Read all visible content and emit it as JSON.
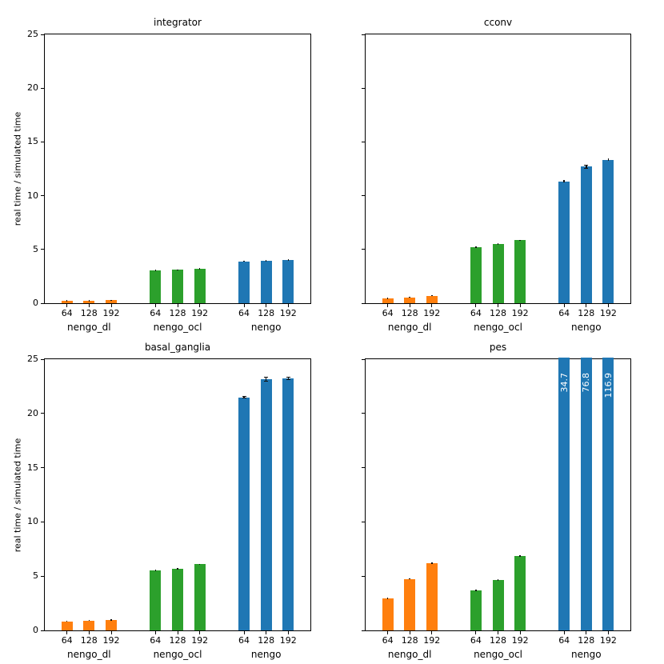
{
  "figure": {
    "background": "#ffffff",
    "text_color": "#000000"
  },
  "chart_data": [
    {
      "type": "bar",
      "title": "integrator",
      "ylabel": "real time / simulated time",
      "ylim": [
        0,
        25
      ],
      "yticks": [
        "0",
        "5",
        "10",
        "15",
        "20",
        "25"
      ],
      "ytick_labels_visible": true,
      "grid": false,
      "legend": "none",
      "categories": [
        "64",
        "128",
        "192"
      ],
      "groups": [
        {
          "label": "nengo_dl",
          "color": "#ff7f0e",
          "bars": [
            {
              "value": 0.22,
              "err": 0.03
            },
            {
              "value": 0.24,
              "err": 0.03
            },
            {
              "value": 0.27,
              "err": 0.03
            }
          ]
        },
        {
          "label": "nengo_ocl",
          "color": "#2ca02c",
          "bars": [
            {
              "value": 3.05,
              "err": 0.05
            },
            {
              "value": 3.1,
              "err": 0.05
            },
            {
              "value": 3.2,
              "err": 0.05
            }
          ]
        },
        {
          "label": "nengo",
          "color": "#1f77b4",
          "bars": [
            {
              "value": 3.9,
              "err": 0.06
            },
            {
              "value": 3.95,
              "err": 0.05
            },
            {
              "value": 4.03,
              "err": 0.06
            }
          ]
        }
      ]
    },
    {
      "type": "bar",
      "title": "cconv",
      "ylabel": "",
      "ylim": [
        0,
        25
      ],
      "yticks": [
        "0",
        "5",
        "10",
        "15",
        "20",
        "25"
      ],
      "ytick_labels_visible": false,
      "grid": false,
      "legend": "none",
      "categories": [
        "64",
        "128",
        "192"
      ],
      "groups": [
        {
          "label": "nengo_dl",
          "color": "#ff7f0e",
          "bars": [
            {
              "value": 0.45,
              "err": 0.03
            },
            {
              "value": 0.55,
              "err": 0.03
            },
            {
              "value": 0.7,
              "err": 0.04
            }
          ]
        },
        {
          "label": "nengo_ocl",
          "color": "#2ca02c",
          "bars": [
            {
              "value": 5.2,
              "err": 0.05
            },
            {
              "value": 5.5,
              "err": 0.08
            },
            {
              "value": 5.85,
              "err": 0.05
            }
          ]
        },
        {
          "label": "nengo",
          "color": "#1f77b4",
          "bars": [
            {
              "value": 11.33,
              "err": 0.1
            },
            {
              "value": 12.7,
              "err": 0.18
            },
            {
              "value": 13.35,
              "err": 0.1
            }
          ]
        }
      ]
    },
    {
      "type": "bar",
      "title": "basal_ganglia",
      "ylabel": "real time / simulated time",
      "ylim": [
        0,
        25
      ],
      "yticks": [
        "0",
        "5",
        "10",
        "15",
        "20",
        "25"
      ],
      "ytick_labels_visible": true,
      "grid": false,
      "legend": "none",
      "categories": [
        "64",
        "128",
        "192"
      ],
      "groups": [
        {
          "label": "nengo_dl",
          "color": "#ff7f0e",
          "bars": [
            {
              "value": 0.85,
              "err": 0.03
            },
            {
              "value": 0.92,
              "err": 0.03
            },
            {
              "value": 0.95,
              "err": 0.03
            }
          ]
        },
        {
          "label": "nengo_ocl",
          "color": "#2ca02c",
          "bars": [
            {
              "value": 5.55,
              "err": 0.08
            },
            {
              "value": 5.7,
              "err": 0.07
            },
            {
              "value": 6.1,
              "err": 0.06
            }
          ]
        },
        {
          "label": "nengo",
          "color": "#1f77b4",
          "bars": [
            {
              "value": 21.5,
              "err": 0.12
            },
            {
              "value": 23.15,
              "err": 0.2
            },
            {
              "value": 23.2,
              "err": 0.15
            }
          ]
        }
      ]
    },
    {
      "type": "bar",
      "title": "pes",
      "ylabel": "",
      "ylim": [
        0,
        25
      ],
      "yticks": [
        "0",
        "5",
        "10",
        "15",
        "20",
        "25"
      ],
      "ytick_labels_visible": false,
      "grid": false,
      "legend": "none",
      "categories": [
        "64",
        "128",
        "192"
      ],
      "groups": [
        {
          "label": "nengo_dl",
          "color": "#ff7f0e",
          "bars": [
            {
              "value": 2.95,
              "err": 0.04
            },
            {
              "value": 4.75,
              "err": 0.04
            },
            {
              "value": 6.2,
              "err": 0.05
            }
          ]
        },
        {
          "label": "nengo_ocl",
          "color": "#2ca02c",
          "bars": [
            {
              "value": 3.7,
              "err": 0.1
            },
            {
              "value": 4.65,
              "err": 0.08
            },
            {
              "value": 6.85,
              "err": 0.06
            }
          ]
        },
        {
          "label": "nengo",
          "color": "#1f77b4",
          "bars": [
            {
              "value": 34.7,
              "err": 0,
              "label": "34.7"
            },
            {
              "value": 76.8,
              "err": 0,
              "label": "76.8"
            },
            {
              "value": 116.9,
              "err": 0,
              "label": "116.9"
            }
          ]
        }
      ]
    }
  ]
}
